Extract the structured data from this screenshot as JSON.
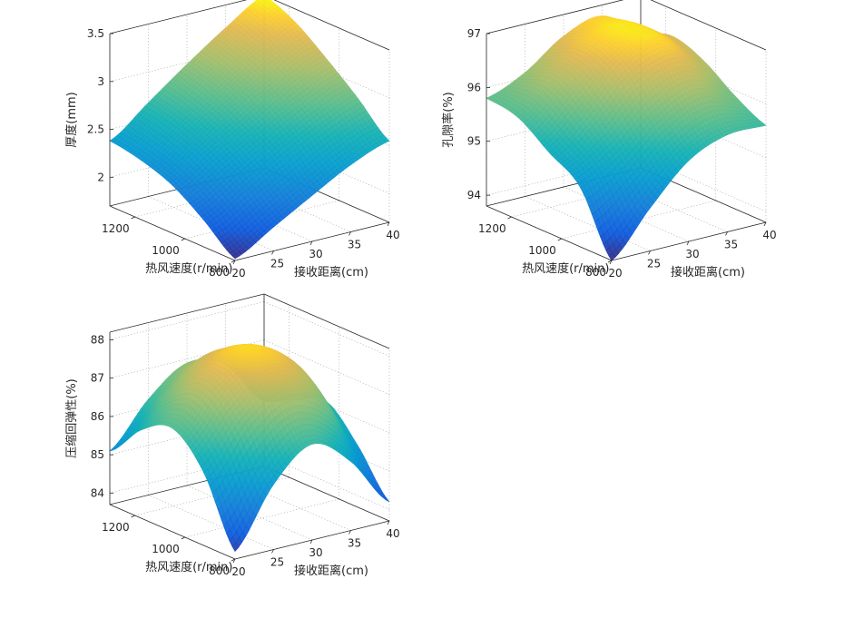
{
  "figure": {
    "background": "#ffffff"
  },
  "chart_data": [
    {
      "type": "surface",
      "xlabel": "接收距离(cm)",
      "ylabel": "热风速度(r/min)",
      "zlabel": "厚度(mm)",
      "xlim": [
        20,
        40
      ],
      "ylim": [
        800,
        1300
      ],
      "zlim": [
        1.7,
        3.5
      ],
      "xticks": [
        "20",
        "25",
        "30",
        "35",
        "40"
      ],
      "yticks": [
        "800",
        "1000",
        "1200"
      ],
      "zticks": [
        "2",
        "2.5",
        "3",
        "3.5"
      ],
      "grid": true,
      "colormap": "parula",
      "x": [
        20,
        25,
        30,
        35,
        40
      ],
      "y": [
        800,
        925,
        1050,
        1175,
        1300
      ],
      "z": [
        [
          1.72,
          1.95,
          2.18,
          2.4,
          2.55
        ],
        [
          1.98,
          2.22,
          2.46,
          2.68,
          2.85
        ],
        [
          2.2,
          2.45,
          2.7,
          2.94,
          3.12
        ],
        [
          2.32,
          2.6,
          2.88,
          3.14,
          3.36
        ],
        [
          2.38,
          2.68,
          2.98,
          3.26,
          3.5
        ]
      ]
    },
    {
      "type": "surface",
      "xlabel": "接收距离(cm)",
      "ylabel": "热风速度(r/min)",
      "zlabel": "孔隙率(%)",
      "xlim": [
        20,
        40
      ],
      "ylim": [
        800,
        1300
      ],
      "zlim": [
        93.8,
        97
      ],
      "xticks": [
        "20",
        "25",
        "30",
        "35",
        "40"
      ],
      "yticks": [
        "800",
        "1000",
        "1200"
      ],
      "zticks": [
        "94",
        "95",
        "96",
        "97"
      ],
      "grid": true,
      "colormap": "parula",
      "x": [
        20,
        25,
        30,
        35,
        40
      ],
      "y": [
        800,
        925,
        1050,
        1175,
        1300
      ],
      "z": [
        [
          93.8,
          94.6,
          95.3,
          95.6,
          95.6
        ],
        [
          94.9,
          95.3,
          95.9,
          96.2,
          95.9
        ],
        [
          95.3,
          95.9,
          96.6,
          96.8,
          96.3
        ],
        [
          95.7,
          96.3,
          96.8,
          96.9,
          96.5
        ],
        [
          95.8,
          96.1,
          96.6,
          96.8,
          96.3
        ]
      ]
    },
    {
      "type": "surface",
      "xlabel": "接收距离(cm)",
      "ylabel": "热风速度(r/min)",
      "zlabel": "压缩回弹性(%)",
      "xlim": [
        20,
        40
      ],
      "ylim": [
        800,
        1300
      ],
      "zlim": [
        83.7,
        88.2
      ],
      "xticks": [
        "20",
        "25",
        "30",
        "35",
        "40"
      ],
      "yticks": [
        "800",
        "1000",
        "1200"
      ],
      "zticks": [
        "84",
        "85",
        "86",
        "87",
        "88"
      ],
      "grid": true,
      "colormap": "parula",
      "x": [
        20,
        25,
        30,
        35,
        40
      ],
      "y": [
        800,
        925,
        1050,
        1175,
        1300
      ],
      "z": [
        [
          83.9,
          85.4,
          86.2,
          85.5,
          84.2
        ],
        [
          85.6,
          86.8,
          87.4,
          86.9,
          85.3
        ],
        [
          86.4,
          87.5,
          88.0,
          87.5,
          86.1
        ],
        [
          86.0,
          87.0,
          87.6,
          87.1,
          85.8
        ],
        [
          85.1,
          86.2,
          86.9,
          86.6,
          85.4
        ]
      ]
    }
  ]
}
